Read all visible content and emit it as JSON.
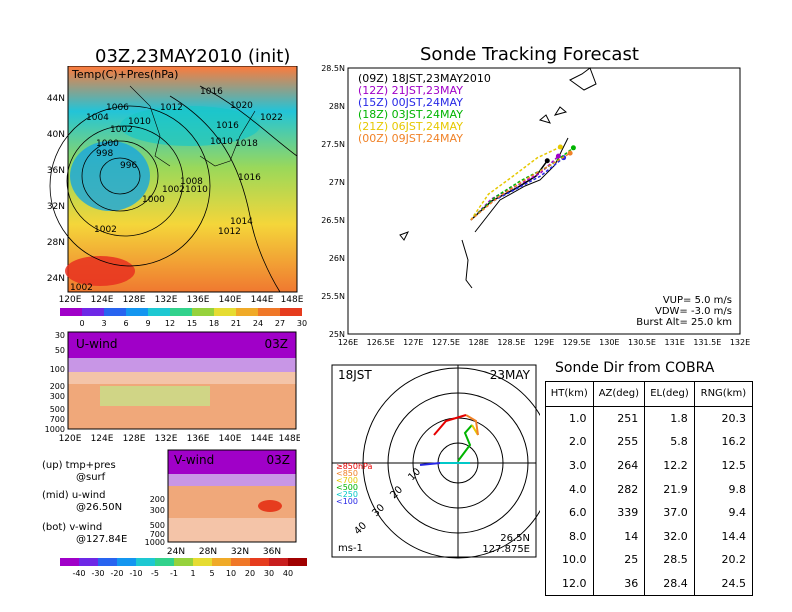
{
  "map_panel": {
    "title": "03Z,23MAY2010 (init)",
    "label": "Temp(C)+Pres(hPa)",
    "lat_ticks": [
      "44N",
      "40N",
      "36N",
      "32N",
      "28N",
      "24N"
    ],
    "lon_ticks": [
      "120E",
      "124E",
      "128E",
      "132E",
      "136E",
      "140E",
      "144E",
      "148E"
    ],
    "isobars": [
      "1016",
      "1006",
      "1012",
      "1020",
      "1004",
      "1022",
      "1010",
      "1016",
      "1002",
      "1000",
      "1010",
      "1018",
      "998",
      "996",
      "1008",
      "1016",
      "1010",
      "1002",
      "1000",
      "1014",
      "1002",
      "1012",
      "1002"
    ],
    "colorbar_ticks": [
      "0",
      "3",
      "6",
      "9",
      "12",
      "15",
      "18",
      "21",
      "24",
      "27",
      "30"
    ]
  },
  "uwind_panel": {
    "label": "U-wind",
    "time": "03Z",
    "p_ticks": [
      "30",
      "50",
      "100",
      "200",
      "300",
      "500",
      "700",
      "1000"
    ],
    "lon_ticks": [
      "120E",
      "124E",
      "128E",
      "132E",
      "136E",
      "140E",
      "144E",
      "148E"
    ]
  },
  "vwind_panel": {
    "label": "V-wind",
    "time": "03Z",
    "p_ticks": [
      "200",
      "300",
      "500",
      "700",
      "1000"
    ],
    "lat_ticks": [
      "24N",
      "28N",
      "32N",
      "36N"
    ],
    "colorbar_ticks": [
      "-40",
      "-30",
      "-20",
      "-10",
      "-5",
      "-1",
      "1",
      "5",
      "10",
      "20",
      "30",
      "40"
    ]
  },
  "side_notes": [
    {
      "a": "(up) tmp+pres",
      "b": "@surf"
    },
    {
      "a": "(mid) u-wind",
      "b": "@26.50N"
    },
    {
      "a": "(bot) v-wind",
      "b": "@127.84E"
    }
  ],
  "track_panel": {
    "title": "Sonde Tracking Forecast",
    "legend": [
      {
        "text": "(09Z)  18JST,23MAY2010",
        "color": "#000000"
      },
      {
        "text": "(12Z)  21JST,23MAY",
        "color": "#a000c8"
      },
      {
        "text": "(15Z)  00JST,24MAY",
        "color": "#2828e6"
      },
      {
        "text": "(18Z)  03JST,24MAY",
        "color": "#00b400"
      },
      {
        "text": "(21Z)  06JST,24MAY",
        "color": "#e6c800"
      },
      {
        "text": "(00Z)  09JST,24MAY",
        "color": "#f08228"
      }
    ],
    "info": [
      "VUP= 5.0 m/s",
      "VDW= -3.0 m/s",
      "Burst Alt= 25.0 km"
    ]
  },
  "polar_panel": {
    "time_left": "18JST",
    "date_right": "23MAY",
    "ring_labels": [
      "10",
      "20",
      "30",
      "40"
    ],
    "height_legend": [
      {
        "text": "≥850hPa",
        "color": "#e60000"
      },
      {
        "text": "<850",
        "color": "#f08228"
      },
      {
        "text": "<700",
        "color": "#e6c800"
      },
      {
        "text": "<500",
        "color": "#00b400"
      },
      {
        "text": "<250",
        "color": "#00c8c8"
      },
      {
        "text": "<100",
        "color": "#2828e6"
      }
    ],
    "unit": "ms-1",
    "loc_lat": "26.5N",
    "loc_lon": "127.875E"
  },
  "cobra_table": {
    "title": "Sonde Dir from COBRA",
    "headers": [
      "HT(km)",
      "AZ(deg)",
      "EL(deg)",
      "RNG(km)"
    ],
    "rows": [
      [
        "1.0",
        "251",
        "1.8",
        "20.3"
      ],
      [
        "2.0",
        "255",
        "5.8",
        "16.2"
      ],
      [
        "3.0",
        "264",
        "12.2",
        "12.5"
      ],
      [
        "4.0",
        "282",
        "21.9",
        "9.8"
      ],
      [
        "6.0",
        "339",
        "37.0",
        "9.4"
      ],
      [
        "8.0",
        "14",
        "32.0",
        "14.4"
      ],
      [
        "10.0",
        "25",
        "28.5",
        "20.2"
      ],
      [
        "12.0",
        "36",
        "28.4",
        "24.5"
      ]
    ]
  },
  "chart_data": {
    "type": "line",
    "title": "Sonde Tracking Forecast",
    "xlabel": "",
    "ylabel": "",
    "x_ticks": [
      "126E",
      "126.5E",
      "127E",
      "127.5E",
      "128E",
      "128.5E",
      "129E",
      "129.5E",
      "130E",
      "130.5E",
      "131E",
      "131.5E",
      "132E"
    ],
    "y_ticks": [
      "25N",
      "25.5N",
      "26N",
      "26.5N",
      "27N",
      "27.5N",
      "28N",
      "28.5N"
    ],
    "xlim": [
      126,
      132
    ],
    "ylim": [
      25,
      28.5
    ],
    "grid": false,
    "legend_position": "top-left",
    "series": [
      {
        "name": "(09Z)  18JST,23MAY2010",
        "color": "#000000",
        "points": [
          [
            127.88,
            26.5
          ],
          [
            128.2,
            26.75
          ],
          [
            128.6,
            26.93
          ],
          [
            128.88,
            27.08
          ],
          [
            129.05,
            27.28
          ]
        ]
      },
      {
        "name": "(12Z)  21JST,23MAY",
        "color": "#a000c8",
        "points": [
          [
            127.88,
            26.5
          ],
          [
            128.2,
            26.78
          ],
          [
            128.6,
            26.96
          ],
          [
            128.95,
            27.12
          ],
          [
            129.22,
            27.34
          ]
        ]
      },
      {
        "name": "(15Z)  00JST,24MAY",
        "color": "#2828e6",
        "points": [
          [
            127.88,
            26.5
          ],
          [
            128.2,
            26.74
          ],
          [
            128.6,
            26.92
          ],
          [
            128.95,
            27.08
          ],
          [
            129.3,
            27.32
          ]
        ]
      },
      {
        "name": "(18Z)  03JST,24MAY",
        "color": "#00b400",
        "points": [
          [
            127.88,
            26.5
          ],
          [
            128.25,
            26.8
          ],
          [
            128.65,
            27.02
          ],
          [
            129.1,
            27.22
          ],
          [
            129.45,
            27.45
          ]
        ]
      },
      {
        "name": "(21Z)  06JST,24MAY",
        "color": "#e6c800",
        "points": [
          [
            127.88,
            26.5
          ],
          [
            128.15,
            26.84
          ],
          [
            128.5,
            27.06
          ],
          [
            128.9,
            27.32
          ],
          [
            129.25,
            27.46
          ]
        ]
      },
      {
        "name": "(00Z)  09JST,24MAY",
        "color": "#f08228",
        "points": [
          [
            127.88,
            26.5
          ],
          [
            128.3,
            26.8
          ],
          [
            128.75,
            27.05
          ],
          [
            129.15,
            27.25
          ],
          [
            129.4,
            27.38
          ]
        ]
      }
    ]
  }
}
